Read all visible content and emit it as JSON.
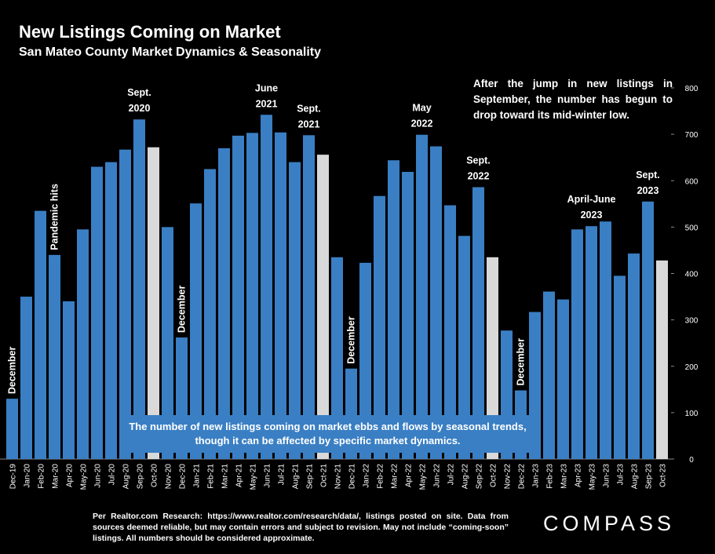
{
  "header": {
    "title": "New Listings Coming on Market",
    "subtitle": "San Mateo County Market Dynamics & Seasonality"
  },
  "callout": "After the jump in new listings in September, the number has begun to drop toward its mid-winter low.",
  "banner": "The number of new listings coming on market ebbs and flows by seasonal trends, though it can be affected by specific market dynamics.",
  "source": "Per Realtor.com Research: https://www.realtor.com/research/data/, listings posted on site. Data from sources deemed reliable, but may contain errors and subject to revision. May not include “coming-soon” listings. All numbers should be considered approximate.",
  "logo": "COMPASS",
  "colors": {
    "bar": "#3a7fc4",
    "highlight": "#d9d9d9",
    "background": "#000000"
  },
  "chart_data": {
    "type": "bar",
    "categories": [
      "Dec-19",
      "Jan-20",
      "Feb-20",
      "Mar-20",
      "Apr-20",
      "May-20",
      "Jun-20",
      "Jul-20",
      "Aug-20",
      "Sep-20",
      "Oct-20",
      "Nov-20",
      "Dec-20",
      "Jan-21",
      "Feb-21",
      "Mar-21",
      "Apr-21",
      "May-21",
      "Jun-21",
      "Jul-21",
      "Aug-21",
      "Sep-21",
      "Oct-21",
      "Nov-21",
      "Dec-21",
      "Jan-22",
      "Feb-22",
      "Mar-22",
      "Apr-22",
      "May-22",
      "Jun-22",
      "Jul-22",
      "Aug-22",
      "Sep-22",
      "Oct-22",
      "Nov-22",
      "Dec-22",
      "Jan-23",
      "Feb-23",
      "Mar-23",
      "Apr-23",
      "May-23",
      "Jun-23",
      "Jul-23",
      "Aug-23",
      "Sep-23",
      "Oct-23"
    ],
    "values": [
      130,
      350,
      535,
      440,
      340,
      495,
      630,
      640,
      667,
      732,
      672,
      500,
      262,
      551,
      625,
      670,
      697,
      703,
      742,
      704,
      640,
      698,
      656,
      435,
      195,
      423,
      567,
      644,
      619,
      699,
      674,
      547,
      481,
      586,
      435,
      277,
      148,
      317,
      361,
      344,
      495,
      502,
      512,
      395,
      443,
      555,
      428
    ],
    "highlighted": [
      "Oct-20",
      "Oct-21",
      "Oct-22",
      "Oct-23"
    ],
    "yaxis_position": "right",
    "ylim": [
      0,
      800
    ],
    "yticks": [
      0,
      100,
      200,
      300,
      400,
      500,
      600,
      700,
      800
    ],
    "annotations": [
      {
        "text": "December",
        "category": "Dec-19",
        "rotated": true
      },
      {
        "text": "Pandemic hits",
        "category": "Mar-20",
        "rotated": true
      },
      {
        "text": "Sept. 2020",
        "category": "Sep-20",
        "lines": [
          "Sept.",
          "2020"
        ]
      },
      {
        "text": "December",
        "category": "Dec-20",
        "rotated": true
      },
      {
        "text": "June 2021",
        "category": "Jun-21",
        "lines": [
          "June",
          "2021"
        ]
      },
      {
        "text": "Sept. 2021",
        "category": "Sep-21",
        "lines": [
          "Sept.",
          "2021"
        ]
      },
      {
        "text": "December",
        "category": "Dec-21",
        "rotated": true
      },
      {
        "text": "May 2022",
        "category": "May-22",
        "lines": [
          "May",
          "2022"
        ]
      },
      {
        "text": "Sept. 2022",
        "category": "Sep-22",
        "lines": [
          "Sept.",
          "2022"
        ]
      },
      {
        "text": "December",
        "category": "Dec-22",
        "rotated": true
      },
      {
        "text": "April-June 2023",
        "category": "May-23",
        "lines": [
          "April-June",
          "2023"
        ]
      },
      {
        "text": "Sept. 2023",
        "category": "Sep-23",
        "lines": [
          "Sept.",
          "2023"
        ]
      }
    ]
  }
}
